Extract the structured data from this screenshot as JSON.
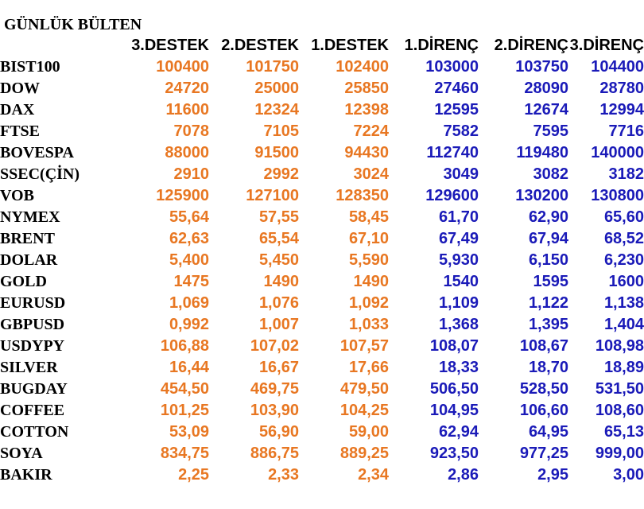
{
  "title": "GÜNLÜK BÜLTEN",
  "colors": {
    "support": "#e87722",
    "resistance": "#1a1ab8",
    "label": "#000000"
  },
  "headers": [
    "3.DESTEK",
    "2.DESTEK",
    "1.DESTEK",
    "1.DİRENÇ",
    "2.DİRENÇ",
    "3.DİRENÇ"
  ],
  "rows": [
    {
      "name": "BIST100",
      "values": [
        "100400",
        "101750",
        "102400",
        "103000",
        "103750",
        "104400"
      ]
    },
    {
      "name": "DOW",
      "values": [
        "24720",
        "25000",
        "25850",
        "27460",
        "28090",
        "28780"
      ]
    },
    {
      "name": "DAX",
      "values": [
        "11600",
        "12324",
        "12398",
        "12595",
        "12674",
        "12994"
      ]
    },
    {
      "name": "FTSE",
      "values": [
        "7078",
        "7105",
        "7224",
        "7582",
        "7595",
        "7716"
      ]
    },
    {
      "name": "BOVESPA",
      "values": [
        "88000",
        "91500",
        "94430",
        "112740",
        "119480",
        "140000"
      ]
    },
    {
      "name": "SSEC(ÇİN)",
      "values": [
        "2910",
        "2992",
        "3024",
        "3049",
        "3082",
        "3182"
      ]
    },
    {
      "name": "VOB",
      "values": [
        "125900",
        "127100",
        "128350",
        "129600",
        "130200",
        "130800"
      ]
    },
    {
      "name": "NYMEX",
      "values": [
        "55,64",
        "57,55",
        "58,45",
        "61,70",
        "62,90",
        "65,60"
      ]
    },
    {
      "name": "BRENT",
      "values": [
        "62,63",
        "65,54",
        "67,10",
        "67,49",
        "67,94",
        "68,52"
      ]
    },
    {
      "name": "DOLAR",
      "values": [
        "5,400",
        "5,450",
        "5,590",
        "5,930",
        "6,150",
        "6,230"
      ]
    },
    {
      "name": "GOLD",
      "values": [
        "1475",
        "1490",
        "1490",
        "1540",
        "1595",
        "1600"
      ]
    },
    {
      "name": "EURUSD",
      "values": [
        "1,069",
        "1,076",
        "1,092",
        "1,109",
        "1,122",
        "1,138"
      ]
    },
    {
      "name": "GBPUSD",
      "values": [
        "0,992",
        "1,007",
        "1,033",
        "1,368",
        "1,395",
        "1,404"
      ]
    },
    {
      "name": "USDYPY",
      "values": [
        "106,88",
        "107,02",
        "107,57",
        "108,07",
        "108,67",
        "108,98"
      ]
    },
    {
      "name": "SILVER",
      "values": [
        "16,44",
        "16,67",
        "17,66",
        "18,33",
        "18,70",
        "18,89"
      ]
    },
    {
      "name": "BUGDAY",
      "values": [
        "454,50",
        "469,75",
        "479,50",
        "506,50",
        "528,50",
        "531,50"
      ]
    },
    {
      "name": "COFFEE",
      "values": [
        "101,25",
        "103,90",
        "104,25",
        "104,95",
        "106,60",
        "108,60"
      ]
    },
    {
      "name": "COTTON",
      "values": [
        "53,09",
        "56,90",
        "59,00",
        "62,94",
        "64,95",
        "65,13"
      ]
    },
    {
      "name": "SOYA",
      "values": [
        "834,75",
        "886,75",
        "889,25",
        "923,50",
        "977,25",
        "999,00"
      ]
    },
    {
      "name": "BAKIR",
      "values": [
        "2,25",
        "2,33",
        "2,34",
        "2,86",
        "2,95",
        "3,00"
      ]
    }
  ]
}
